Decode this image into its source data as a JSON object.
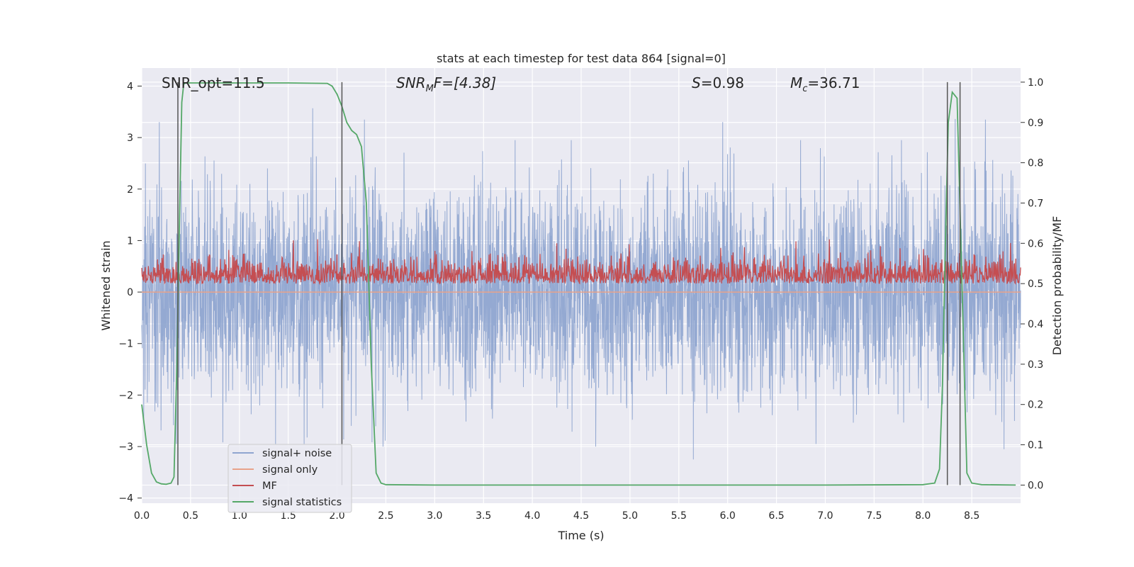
{
  "chart_data": {
    "type": "line",
    "title": "stats at each timestep for test data 864 [signal=0]",
    "xlabel": "Time (s)",
    "ylabel": "Whitened strain",
    "y2label": "Detection probability/MF",
    "xlim": [
      0,
      9.0
    ],
    "ylim": [
      -4.1,
      4.35
    ],
    "y2lim": [
      -0.045,
      1.035
    ],
    "xticks": [
      "0.0",
      "0.5",
      "1.0",
      "1.5",
      "2.0",
      "2.5",
      "3.0",
      "3.5",
      "4.0",
      "4.5",
      "5.0",
      "5.5",
      "6.0",
      "6.5",
      "7.0",
      "7.5",
      "8.0",
      "8.5"
    ],
    "yticks": [
      "4",
      "3",
      "2",
      "1",
      "0",
      "−1",
      "−2",
      "−3",
      "−4"
    ],
    "y2ticks": [
      "1.0",
      "0.9",
      "0.8",
      "0.7",
      "0.6",
      "0.5",
      "0.4",
      "0.3",
      "0.2",
      "0.1",
      "0.0"
    ],
    "grid": true,
    "legend_position": "lower-left",
    "annotations": {
      "snr_opt": "SNR_opt=11.5",
      "snr_mf_prefix": "SNR",
      "snr_mf_sub": "M",
      "snr_mf_suffix": "F=[4.38]",
      "s_italic": "S",
      "s_value": "=0.98",
      "mc_italic": "M",
      "mc_sub": "c",
      "mc_value": "=36.71"
    },
    "series": [
      {
        "name": "signal+ noise",
        "color": "#8fa5d0",
        "description_of_values": "whitened noise, approx N(0,1), range about -3.3 to 3.6",
        "noise_amplitude_sigma": 1.0,
        "peaks": [
          {
            "x": 0.18,
            "y": 3.3
          },
          {
            "x": 1.75,
            "y": 3.57
          },
          {
            "x": 2.28,
            "y": 3.35
          },
          {
            "x": 5.95,
            "y": 3.3
          },
          {
            "x": 8.33,
            "y": 3.36
          },
          {
            "x": 8.64,
            "y": 3.35
          },
          {
            "x": 5.65,
            "y": -3.25
          },
          {
            "x": 2.47,
            "y": -3.0
          },
          {
            "x": 4.65,
            "y": -3.0
          },
          {
            "x": 8.83,
            "y": -3.05
          },
          {
            "x": 1.37,
            "y": -2.95
          }
        ]
      },
      {
        "name": "signal only",
        "color": "#e8a28a",
        "values_constant": 0.0
      },
      {
        "name": "MF",
        "color": "#c44e52",
        "axis": "right",
        "baseline": 0.5,
        "range": [
          0.495,
          0.62
        ],
        "peaks": [
          {
            "x": 1.8,
            "y": 0.61
          },
          {
            "x": 6.7,
            "y": 0.605
          },
          {
            "x": 4.25,
            "y": 0.6
          }
        ]
      },
      {
        "name": "signal statistics",
        "color": "#55a868",
        "axis": "right",
        "x": [
          0.0,
          0.05,
          0.1,
          0.15,
          0.2,
          0.25,
          0.3,
          0.33,
          0.36,
          0.39,
          0.41,
          0.43,
          0.45,
          0.5,
          0.6,
          1.0,
          1.5,
          1.9,
          1.95,
          2.0,
          2.05,
          2.1,
          2.15,
          2.2,
          2.25,
          2.3,
          2.35,
          2.4,
          2.45,
          2.5,
          3.0,
          4.0,
          5.0,
          6.0,
          7.0,
          8.0,
          8.12,
          8.17,
          8.2,
          8.23,
          8.26,
          8.3,
          8.35,
          8.4,
          8.45,
          8.5,
          8.6,
          8.95
        ],
        "values": [
          0.2,
          0.1,
          0.03,
          0.008,
          0.003,
          0.002,
          0.005,
          0.02,
          0.3,
          0.7,
          0.95,
          0.995,
          0.998,
          0.998,
          0.998,
          0.998,
          0.998,
          0.997,
          0.99,
          0.97,
          0.94,
          0.9,
          0.88,
          0.87,
          0.84,
          0.7,
          0.3,
          0.03,
          0.005,
          0.001,
          0.0,
          0.0,
          0.0,
          0.0,
          0.0,
          0.001,
          0.005,
          0.04,
          0.25,
          0.6,
          0.9,
          0.975,
          0.96,
          0.5,
          0.03,
          0.005,
          0.001,
          0.0
        ]
      }
    ],
    "vlines": {
      "color": "#555555",
      "x": [
        0.37,
        2.05,
        8.25,
        8.38
      ]
    }
  }
}
